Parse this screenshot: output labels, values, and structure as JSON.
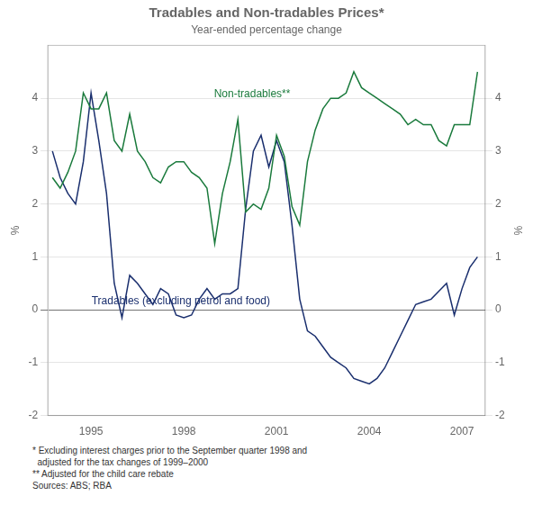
{
  "chart_data": {
    "type": "line",
    "title": "Tradables and Non-tradables Prices*",
    "subtitle": "Year-ended percentage change",
    "ylabel": "%",
    "y2label": "%",
    "footnote": "* Excluding interest charges prior to the September quarter 1998 and\n  adjusted for the tax changes of 1999–2000\n** Adjusted for the child care rebate\nSources: ABS; RBA",
    "x": [
      1993.75,
      1994.0,
      1994.25,
      1994.5,
      1994.75,
      1995.0,
      1995.25,
      1995.5,
      1995.75,
      1996.0,
      1996.25,
      1996.5,
      1996.75,
      1997.0,
      1997.25,
      1997.5,
      1997.75,
      1998.0,
      1998.25,
      1998.5,
      1998.75,
      1999.0,
      1999.25,
      1999.5,
      1999.75,
      2000.0,
      2000.25,
      2000.5,
      2000.75,
      2001.0,
      2001.25,
      2001.5,
      2001.75,
      2002.0,
      2002.25,
      2002.5,
      2002.75,
      2003.0,
      2003.25,
      2003.5,
      2003.75,
      2004.0,
      2004.25,
      2004.5,
      2004.75,
      2005.0,
      2005.25,
      2005.5,
      2005.75,
      2006.0,
      2006.25,
      2006.5,
      2006.75,
      2007.0,
      2007.25,
      2007.5
    ],
    "series": [
      {
        "name": "Non-tradables**",
        "color": "#1a7a3c",
        "values": [
          2.5,
          2.3,
          2.6,
          3.0,
          4.1,
          3.8,
          3.8,
          4.1,
          3.2,
          3.0,
          3.7,
          3.0,
          2.8,
          2.5,
          2.4,
          2.7,
          2.8,
          2.8,
          2.6,
          2.5,
          2.3,
          1.25,
          2.2,
          2.8,
          3.6,
          1.85,
          2.0,
          1.9,
          2.3,
          3.3,
          2.9,
          1.95,
          1.6,
          2.8,
          3.4,
          3.8,
          4.0,
          4.0,
          4.1,
          4.5,
          4.2,
          4.1,
          4.0,
          3.9,
          3.8,
          3.7,
          3.5,
          3.6,
          3.5,
          3.5,
          3.2,
          3.1,
          3.5,
          3.5,
          3.5,
          4.5
        ]
      },
      {
        "name": "Tradables (excluding petrol and food)",
        "color": "#1a2f6e",
        "values": [
          3.0,
          2.5,
          2.2,
          2.0,
          2.8,
          4.1,
          3.2,
          2.2,
          0.5,
          -0.15,
          0.65,
          0.5,
          0.3,
          0.1,
          0.4,
          0.3,
          -0.1,
          -0.15,
          -0.1,
          0.2,
          0.4,
          0.2,
          0.3,
          0.3,
          0.4,
          1.9,
          3.0,
          3.3,
          2.7,
          3.2,
          2.8,
          1.6,
          0.2,
          -0.4,
          -0.5,
          -0.7,
          -0.9,
          -1.0,
          -1.1,
          -1.3,
          -1.35,
          -1.4,
          -1.3,
          -1.1,
          -0.8,
          -0.5,
          -0.2,
          0.1,
          0.15,
          0.2,
          0.35,
          0.5,
          -0.1,
          0.4,
          0.8,
          1.0
        ]
      }
    ],
    "xlim": [
      1993.6,
      2007.75
    ],
    "xticks": [
      1995,
      1998,
      2001,
      2004,
      2007
    ],
    "ylim": [
      -2,
      5
    ],
    "yticks": [
      -2,
      -1,
      0,
      1,
      2,
      3,
      4
    ],
    "y2lim": [
      -2,
      5
    ],
    "y2ticks": [
      -2,
      -1,
      0,
      1,
      2,
      3,
      4
    ],
    "grid": "y"
  }
}
